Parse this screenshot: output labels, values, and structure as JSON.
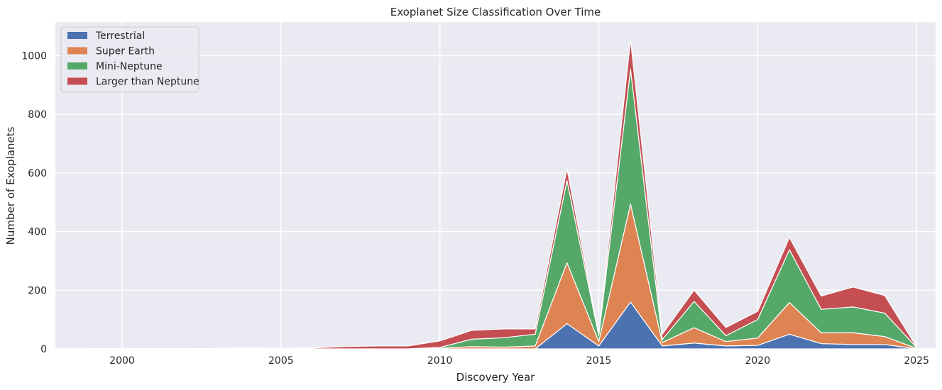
{
  "chart_data": {
    "type": "area",
    "stacked": true,
    "title": "Exoplanet Size Classification Over Time",
    "xlabel": "Discovery Year",
    "ylabel": "Number of Exoplanets",
    "xlim": [
      1997.9,
      2025.6
    ],
    "ylim": [
      0,
      1115
    ],
    "x_ticks": [
      2000,
      2005,
      2010,
      2015,
      2020,
      2025
    ],
    "y_ticks": [
      0,
      200,
      400,
      600,
      800,
      1000
    ],
    "grid": true,
    "legend_position": "top-left",
    "x": [
      1999,
      2000,
      2001,
      2002,
      2003,
      2004,
      2005,
      2006,
      2007,
      2008,
      2009,
      2010,
      2011,
      2012,
      2013,
      2014,
      2015,
      2016,
      2017,
      2018,
      2019,
      2020,
      2021,
      2022,
      2023,
      2024,
      2025
    ],
    "series": [
      {
        "name": "Terrestrial",
        "color": "#4c72b0",
        "values": [
          0,
          0,
          0,
          0,
          0,
          0,
          0,
          0,
          0,
          0,
          0,
          0,
          0,
          0,
          0,
          86,
          10,
          160,
          10,
          20,
          10,
          12,
          50,
          18,
          15,
          15,
          0
        ]
      },
      {
        "name": "Super Earth",
        "color": "#dd8452",
        "values": [
          0,
          0,
          0,
          0,
          0,
          0,
          0,
          0,
          0,
          0,
          0,
          2,
          8,
          6,
          10,
          208,
          15,
          334,
          12,
          52,
          15,
          25,
          108,
          37,
          40,
          27,
          2
        ]
      },
      {
        "name": "Mini-Neptune",
        "color": "#55a868",
        "values": [
          0,
          0,
          0,
          0,
          0,
          0,
          0,
          0,
          0,
          0,
          0,
          3,
          25,
          32,
          40,
          280,
          20,
          460,
          10,
          90,
          20,
          63,
          180,
          80,
          88,
          80,
          3
        ]
      },
      {
        "name": "Larger than Neptune",
        "color": "#c44e52",
        "values": [
          0,
          0,
          0,
          0,
          2,
          3,
          2,
          3,
          8,
          10,
          10,
          22,
          30,
          30,
          18,
          40,
          5,
          100,
          18,
          38,
          28,
          28,
          42,
          45,
          68,
          60,
          2
        ]
      }
    ]
  }
}
